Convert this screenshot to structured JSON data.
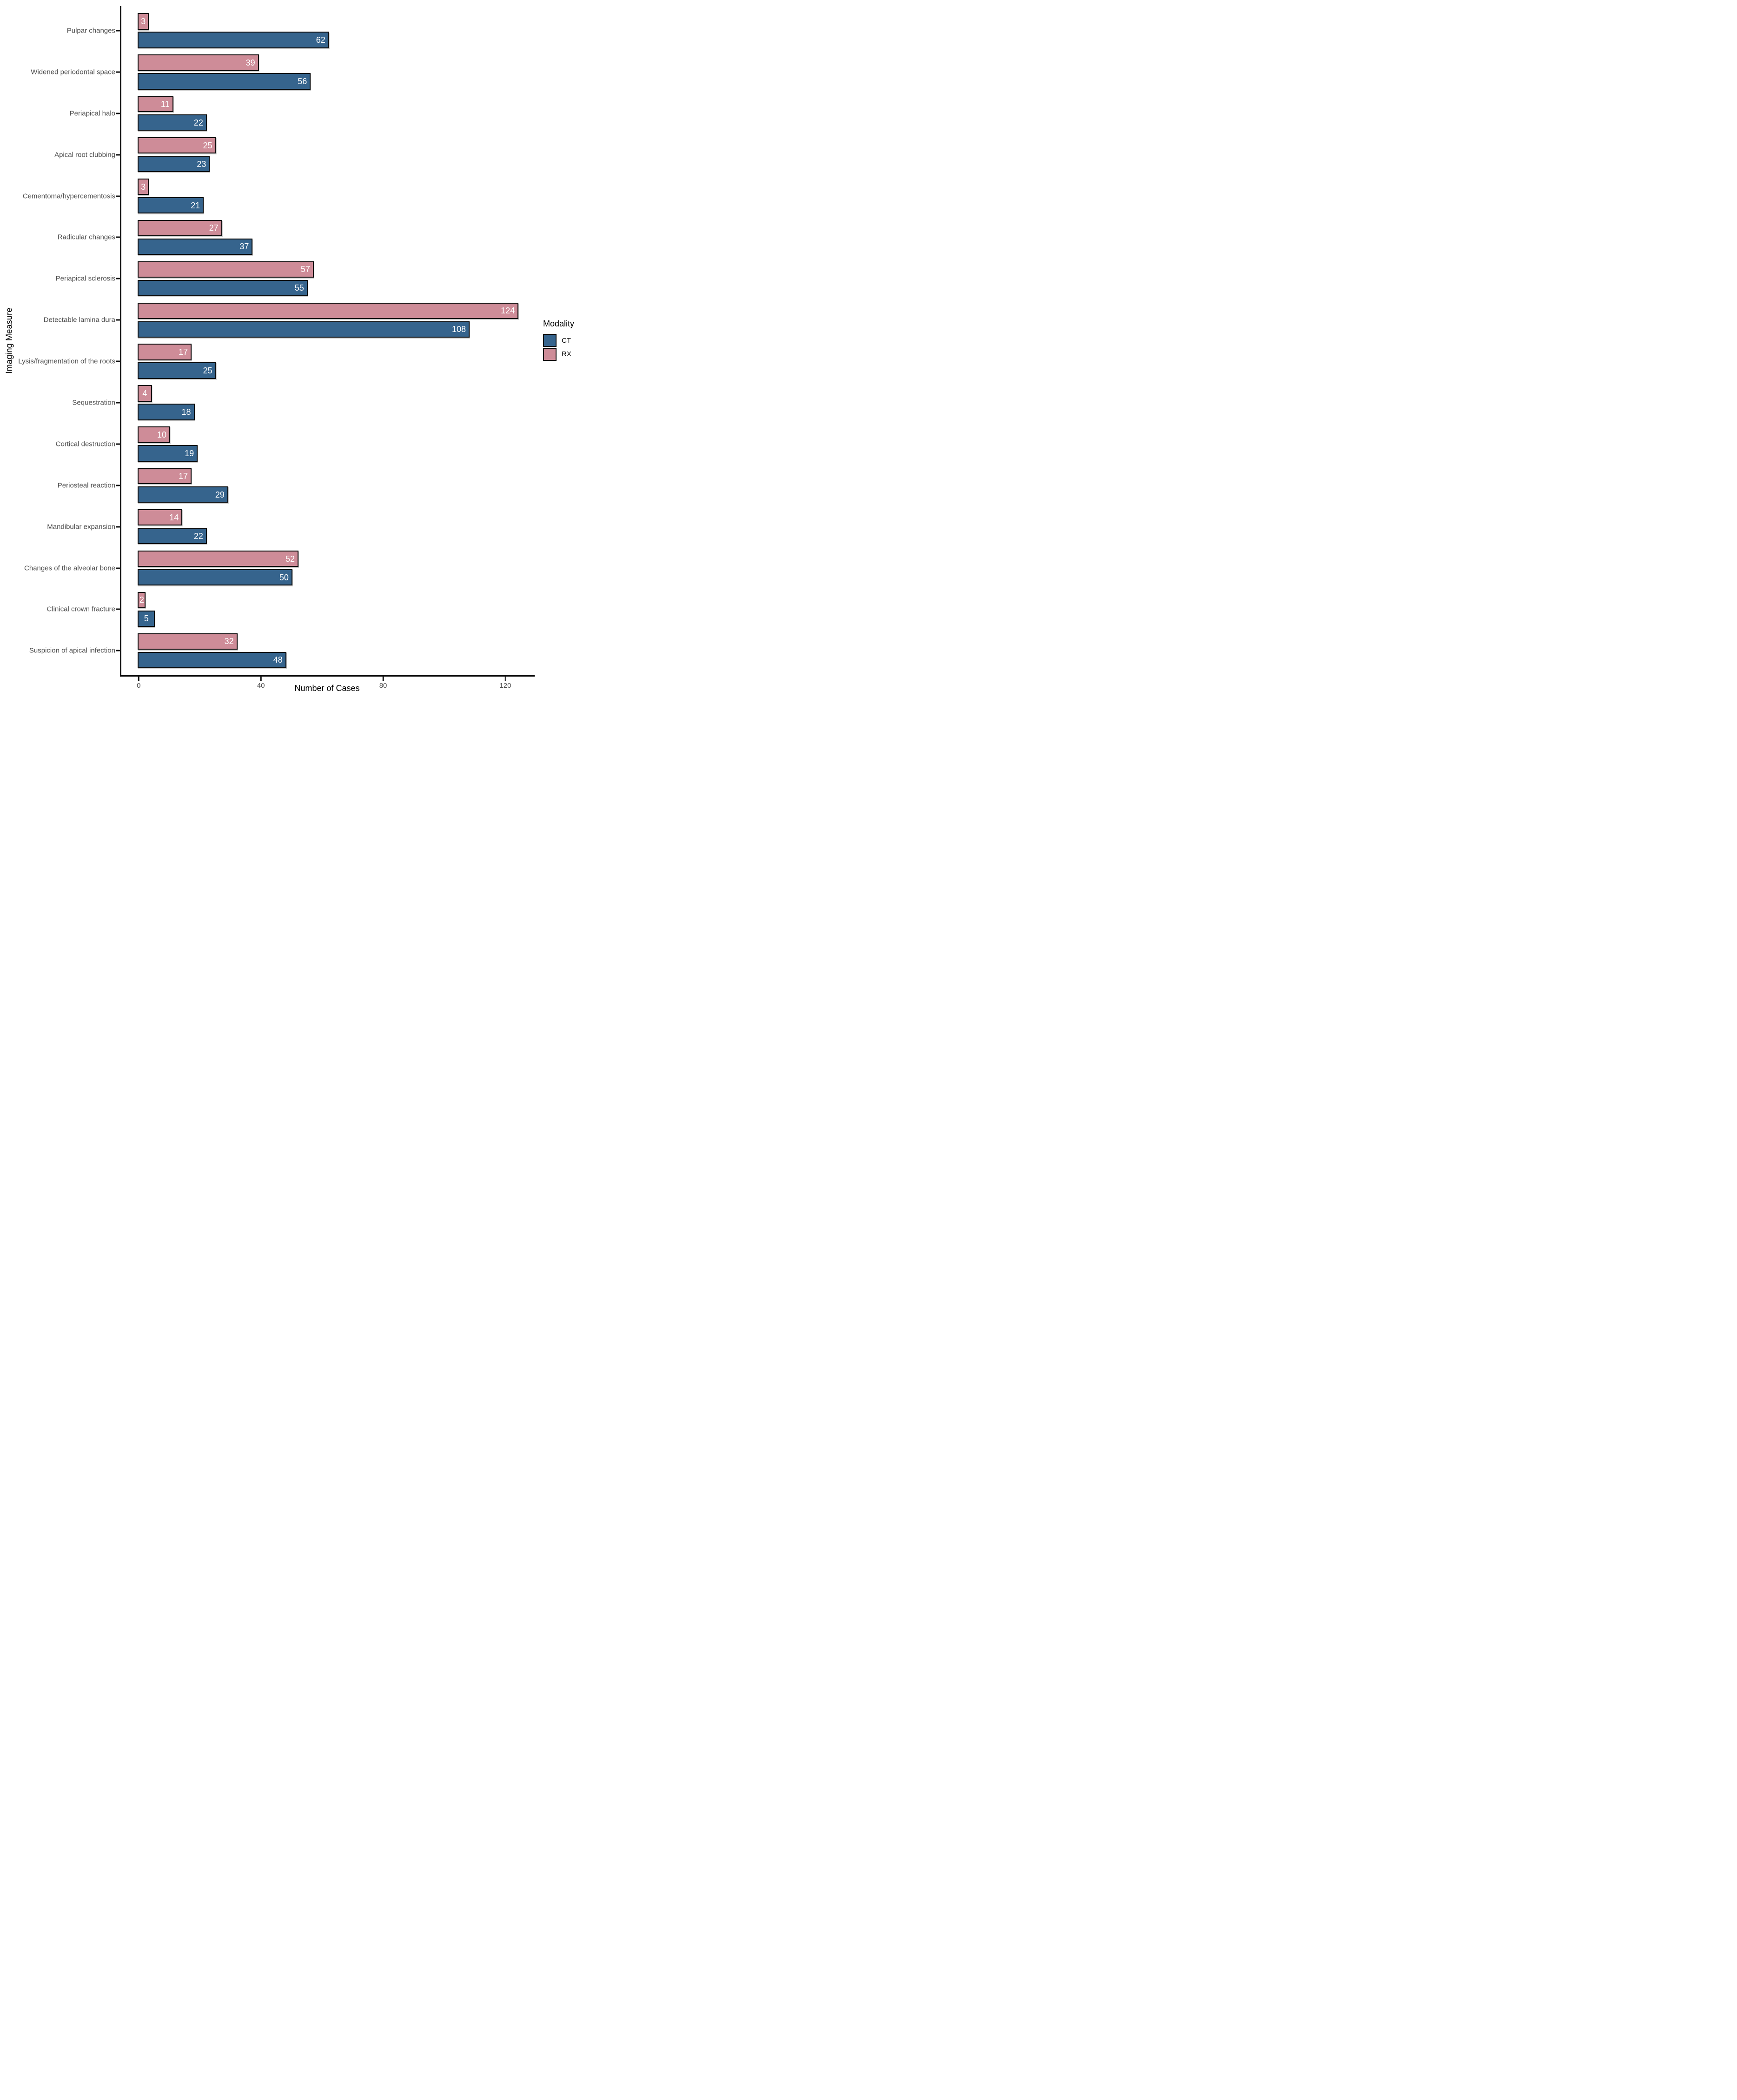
{
  "chart_data": {
    "type": "bar",
    "orientation": "horizontal",
    "title": "",
    "xlabel": "Number of Cases",
    "ylabel": "Imaging Measure",
    "x_ticks": [
      0,
      40,
      80,
      120
    ],
    "xlim": [
      0,
      130
    ],
    "grid": false,
    "bar_value_labels": "white, inside right end of each bar",
    "categories": [
      "Pulpar changes",
      "Widened periodontal space",
      "Periapical halo",
      "Apical root clubbing",
      "Cementoma/hypercementosis",
      "Radicular changes",
      "Periapical sclerosis",
      "Detectable lamina dura",
      "Lysis/fragmentation of the roots",
      "Sequestration",
      "Cortical destruction",
      "Periosteal reaction",
      "Mandibular expansion",
      "Changes of the alveolar bone",
      "Clinical crown fracture",
      "Suspicion of apical infection"
    ],
    "series": [
      {
        "name": "RX",
        "color": "#CE8C98",
        "values": [
          3,
          39,
          11,
          25,
          3,
          27,
          57,
          124,
          17,
          4,
          10,
          17,
          14,
          52,
          2,
          32
        ]
      },
      {
        "name": "CT",
        "color": "#36648D",
        "values": [
          62,
          56,
          22,
          23,
          21,
          37,
          55,
          108,
          25,
          18,
          19,
          29,
          22,
          50,
          5,
          48
        ]
      }
    ],
    "legend": {
      "title": "Modality",
      "position": "right",
      "entries": [
        {
          "label": "CT",
          "color": "#36648D"
        },
        {
          "label": "RX",
          "color": "#CE8C98"
        }
      ]
    },
    "colors": {
      "axis_text": "#4d4d4d",
      "axis_line": "#111111",
      "bar_border": "#0b0b0b",
      "bar_label": "#ffffff"
    }
  }
}
